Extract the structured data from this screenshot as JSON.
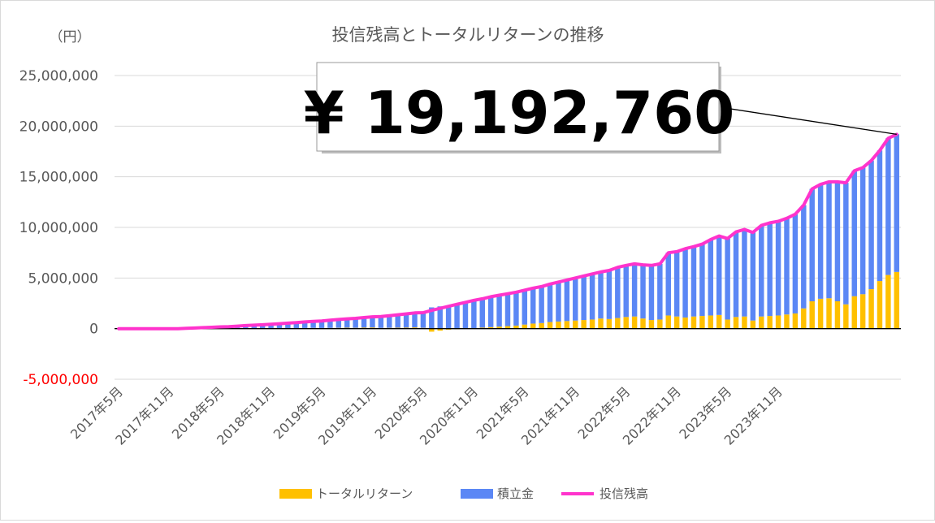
{
  "chart_data": {
    "type": "bar",
    "title": "投信残高とトータルリターンの推移",
    "unit_label": "（円）",
    "callout": "¥ 19,192,760",
    "ylim": [
      -5000000,
      25000000
    ],
    "y_ticks": [
      {
        "value": 25000000,
        "label": "25,000,000"
      },
      {
        "value": 20000000,
        "label": "20,000,000"
      },
      {
        "value": 15000000,
        "label": "15,000,000"
      },
      {
        "value": 10000000,
        "label": "10,000,000"
      },
      {
        "value": 5000000,
        "label": "5,000,000"
      },
      {
        "value": 0,
        "label": "0"
      },
      {
        "value": -5000000,
        "label": "-5,000,000"
      }
    ],
    "x_ticks": [
      "2017年5月",
      "2017年11月",
      "2018年5月",
      "2018年11月",
      "2019年5月",
      "2019年11月",
      "2020年5月",
      "2020年11月",
      "2021年5月",
      "2021年11月",
      "2022年5月",
      "2022年11月",
      "2023年5月",
      "2023年11月"
    ],
    "start": "2017年5月",
    "series": [
      {
        "name": "トータルリターン",
        "color": "#FFC000",
        "values": [
          0,
          0,
          0,
          0,
          0,
          0,
          0,
          0,
          0,
          0,
          0,
          0,
          5000,
          10000,
          10000,
          20000,
          25000,
          30000,
          20000,
          30000,
          40000,
          50000,
          60000,
          70000,
          60000,
          70000,
          80000,
          90000,
          80000,
          100000,
          110000,
          70000,
          80000,
          90000,
          100000,
          120000,
          80000,
          -300000,
          -200000,
          -100000,
          -50000,
          0,
          50000,
          100000,
          150000,
          200000,
          250000,
          300000,
          400000,
          500000,
          550000,
          650000,
          700000,
          750000,
          800000,
          850000,
          900000,
          1000000,
          950000,
          1050000,
          1150000,
          1200000,
          1000000,
          850000,
          900000,
          1300000,
          1200000,
          1100000,
          1200000,
          1250000,
          1300000,
          1350000,
          900000,
          1150000,
          1200000,
          800000,
          1200000,
          1250000,
          1300000,
          1400000,
          1500000,
          2000000,
          2700000,
          2950000,
          3000000,
          2700000,
          2400000,
          3200000,
          3400000,
          3900000,
          4700000,
          5300000,
          5600000
        ]
      },
      {
        "name": "積立金",
        "color": "#5B87F5",
        "values": [
          0,
          0,
          0,
          0,
          0,
          0,
          0,
          0,
          30000,
          60000,
          100000,
          130000,
          165000,
          190000,
          240000,
          280000,
          315000,
          350000,
          420000,
          460000,
          500000,
          550000,
          600000,
          650000,
          700000,
          760000,
          820000,
          880000,
          940000,
          1000000,
          1060000,
          1130000,
          1200000,
          1280000,
          1360000,
          1430000,
          1500000,
          2100000,
          2200000,
          2300000,
          2450000,
          2600000,
          2750000,
          2850000,
          3000000,
          3100000,
          3200000,
          3300000,
          3400000,
          3500000,
          3600000,
          3750000,
          3900000,
          4050000,
          4200000,
          4350000,
          4500000,
          4600000,
          4800000,
          5000000,
          5100000,
          5200000,
          5300000,
          5400000,
          5500000,
          6200000,
          6400000,
          6800000,
          6900000,
          7100000,
          7500000,
          7800000,
          8000000,
          8400000,
          8600000,
          8700000,
          9000000,
          9200000,
          9300000,
          9500000,
          9800000,
          10200000,
          11100000,
          11300000,
          11500000,
          11800000,
          12000000,
          12400000,
          12500000,
          12700000,
          12900000,
          13500000,
          13600000
        ]
      },
      {
        "name": "投信残高",
        "color": "#FF33CC",
        "values": [
          0,
          0,
          0,
          0,
          0,
          0,
          0,
          0,
          30000,
          60000,
          100000,
          130000,
          170000,
          200000,
          250000,
          300000,
          340000,
          380000,
          440000,
          490000,
          540000,
          600000,
          660000,
          720000,
          760000,
          830000,
          900000,
          970000,
          1020000,
          1100000,
          1170000,
          1200000,
          1280000,
          1370000,
          1460000,
          1550000,
          1580000,
          1800000,
          2000000,
          2200000,
          2400000,
          2600000,
          2800000,
          2950000,
          3150000,
          3300000,
          3450000,
          3600000,
          3800000,
          4000000,
          4150000,
          4400000,
          4600000,
          4800000,
          5000000,
          5200000,
          5400000,
          5600000,
          5750000,
          6050000,
          6250000,
          6400000,
          6300000,
          6250000,
          6400000,
          7500000,
          7600000,
          7900000,
          8100000,
          8350000,
          8800000,
          9150000,
          8900000,
          9550000,
          9800000,
          9500000,
          10200000,
          10450000,
          10600000,
          10900000,
          11300000,
          12200000,
          13800000,
          14250000,
          14500000,
          14500000,
          14400000,
          15600000,
          15900000,
          16600000,
          17600000,
          18800000,
          19192760
        ]
      }
    ]
  }
}
